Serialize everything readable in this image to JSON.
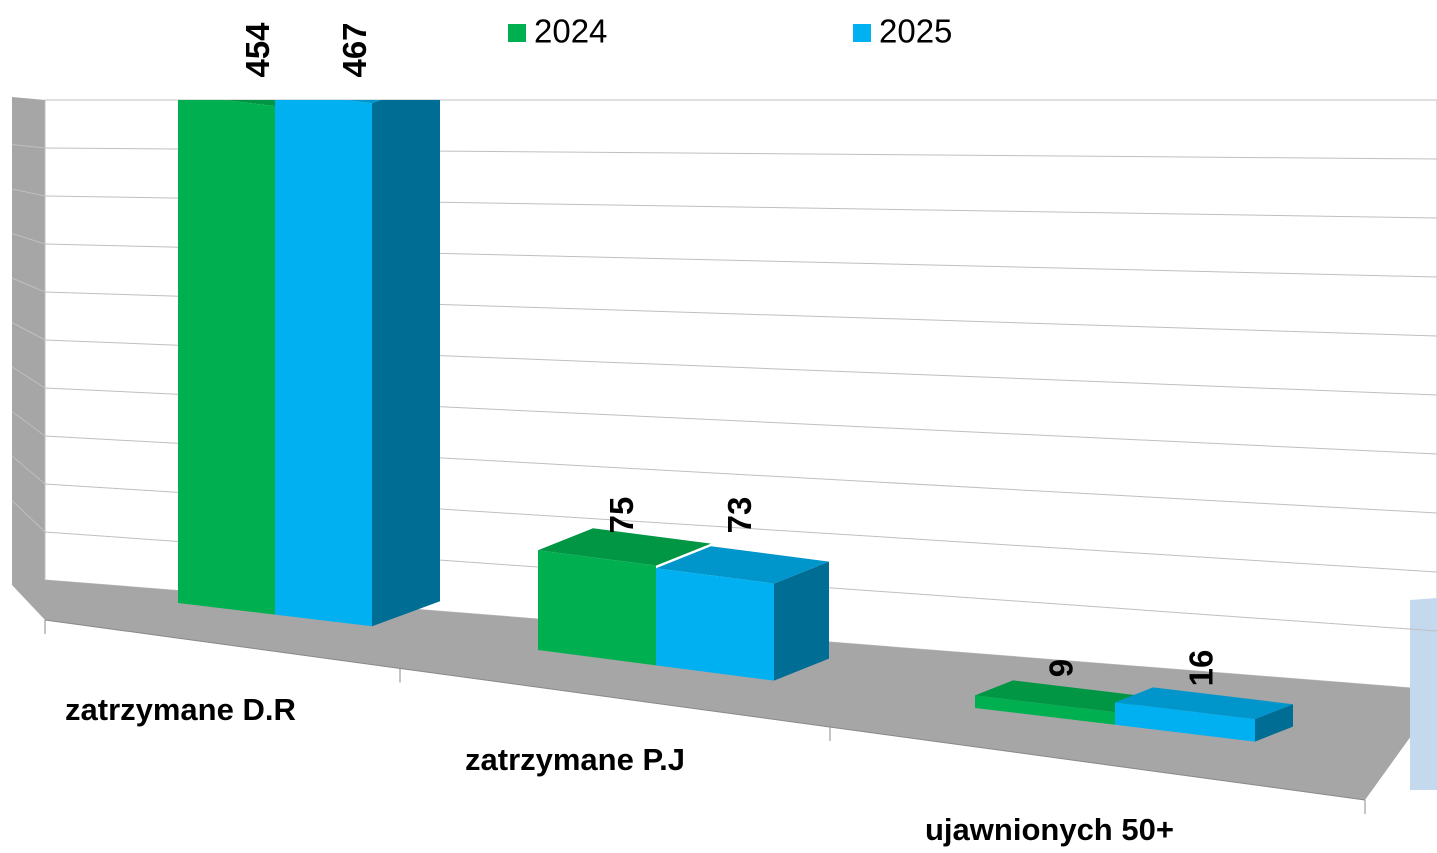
{
  "chart_data": {
    "type": "bar",
    "categories": [
      "zatrzymane D.R",
      "zatrzymane P.J",
      "ujawnionych 50+"
    ],
    "series": [
      {
        "name": "2024",
        "color": "#00b050",
        "values": [
          454,
          75,
          9
        ]
      },
      {
        "name": "2025",
        "color": "#00b0f0",
        "values": [
          467,
          73,
          16
        ]
      }
    ],
    "ylim": [
      0,
      500
    ],
    "grid": true
  }
}
